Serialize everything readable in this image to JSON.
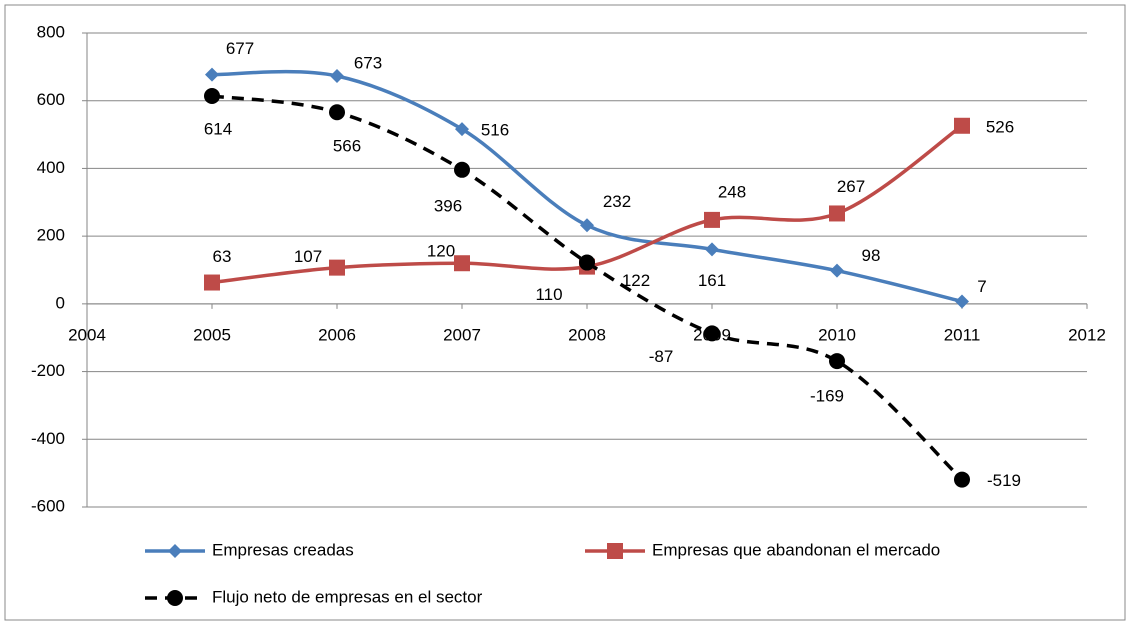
{
  "chart_data": {
    "type": "line",
    "x": [
      2005,
      2006,
      2007,
      2008,
      2009,
      2010,
      2011
    ],
    "xlim": [
      2004,
      2012
    ],
    "xticks": [
      2004,
      2005,
      2006,
      2007,
      2008,
      2009,
      2010,
      2011,
      2012
    ],
    "ylim": [
      -600,
      800
    ],
    "yticks": [
      -600,
      -400,
      -200,
      0,
      200,
      400,
      600,
      800
    ],
    "grid": true,
    "legend": "bottom",
    "smooth": true,
    "series": [
      {
        "name": "Empresas creadas",
        "color": "#4a7ebb",
        "marker": "diamond",
        "dashed": false,
        "values": [
          677,
          673,
          516,
          232,
          161,
          98,
          7
        ]
      },
      {
        "name": "Empresas que abandonan el mercado",
        "color": "#be4b48",
        "marker": "square",
        "dashed": false,
        "values": [
          63,
          107,
          120,
          110,
          248,
          267,
          526
        ]
      },
      {
        "name": "Flujo neto de empresas en el sector",
        "color": "#000000",
        "marker": "circle",
        "dashed": true,
        "values": [
          614,
          566,
          396,
          122,
          -87,
          -169,
          -519
        ]
      }
    ]
  }
}
